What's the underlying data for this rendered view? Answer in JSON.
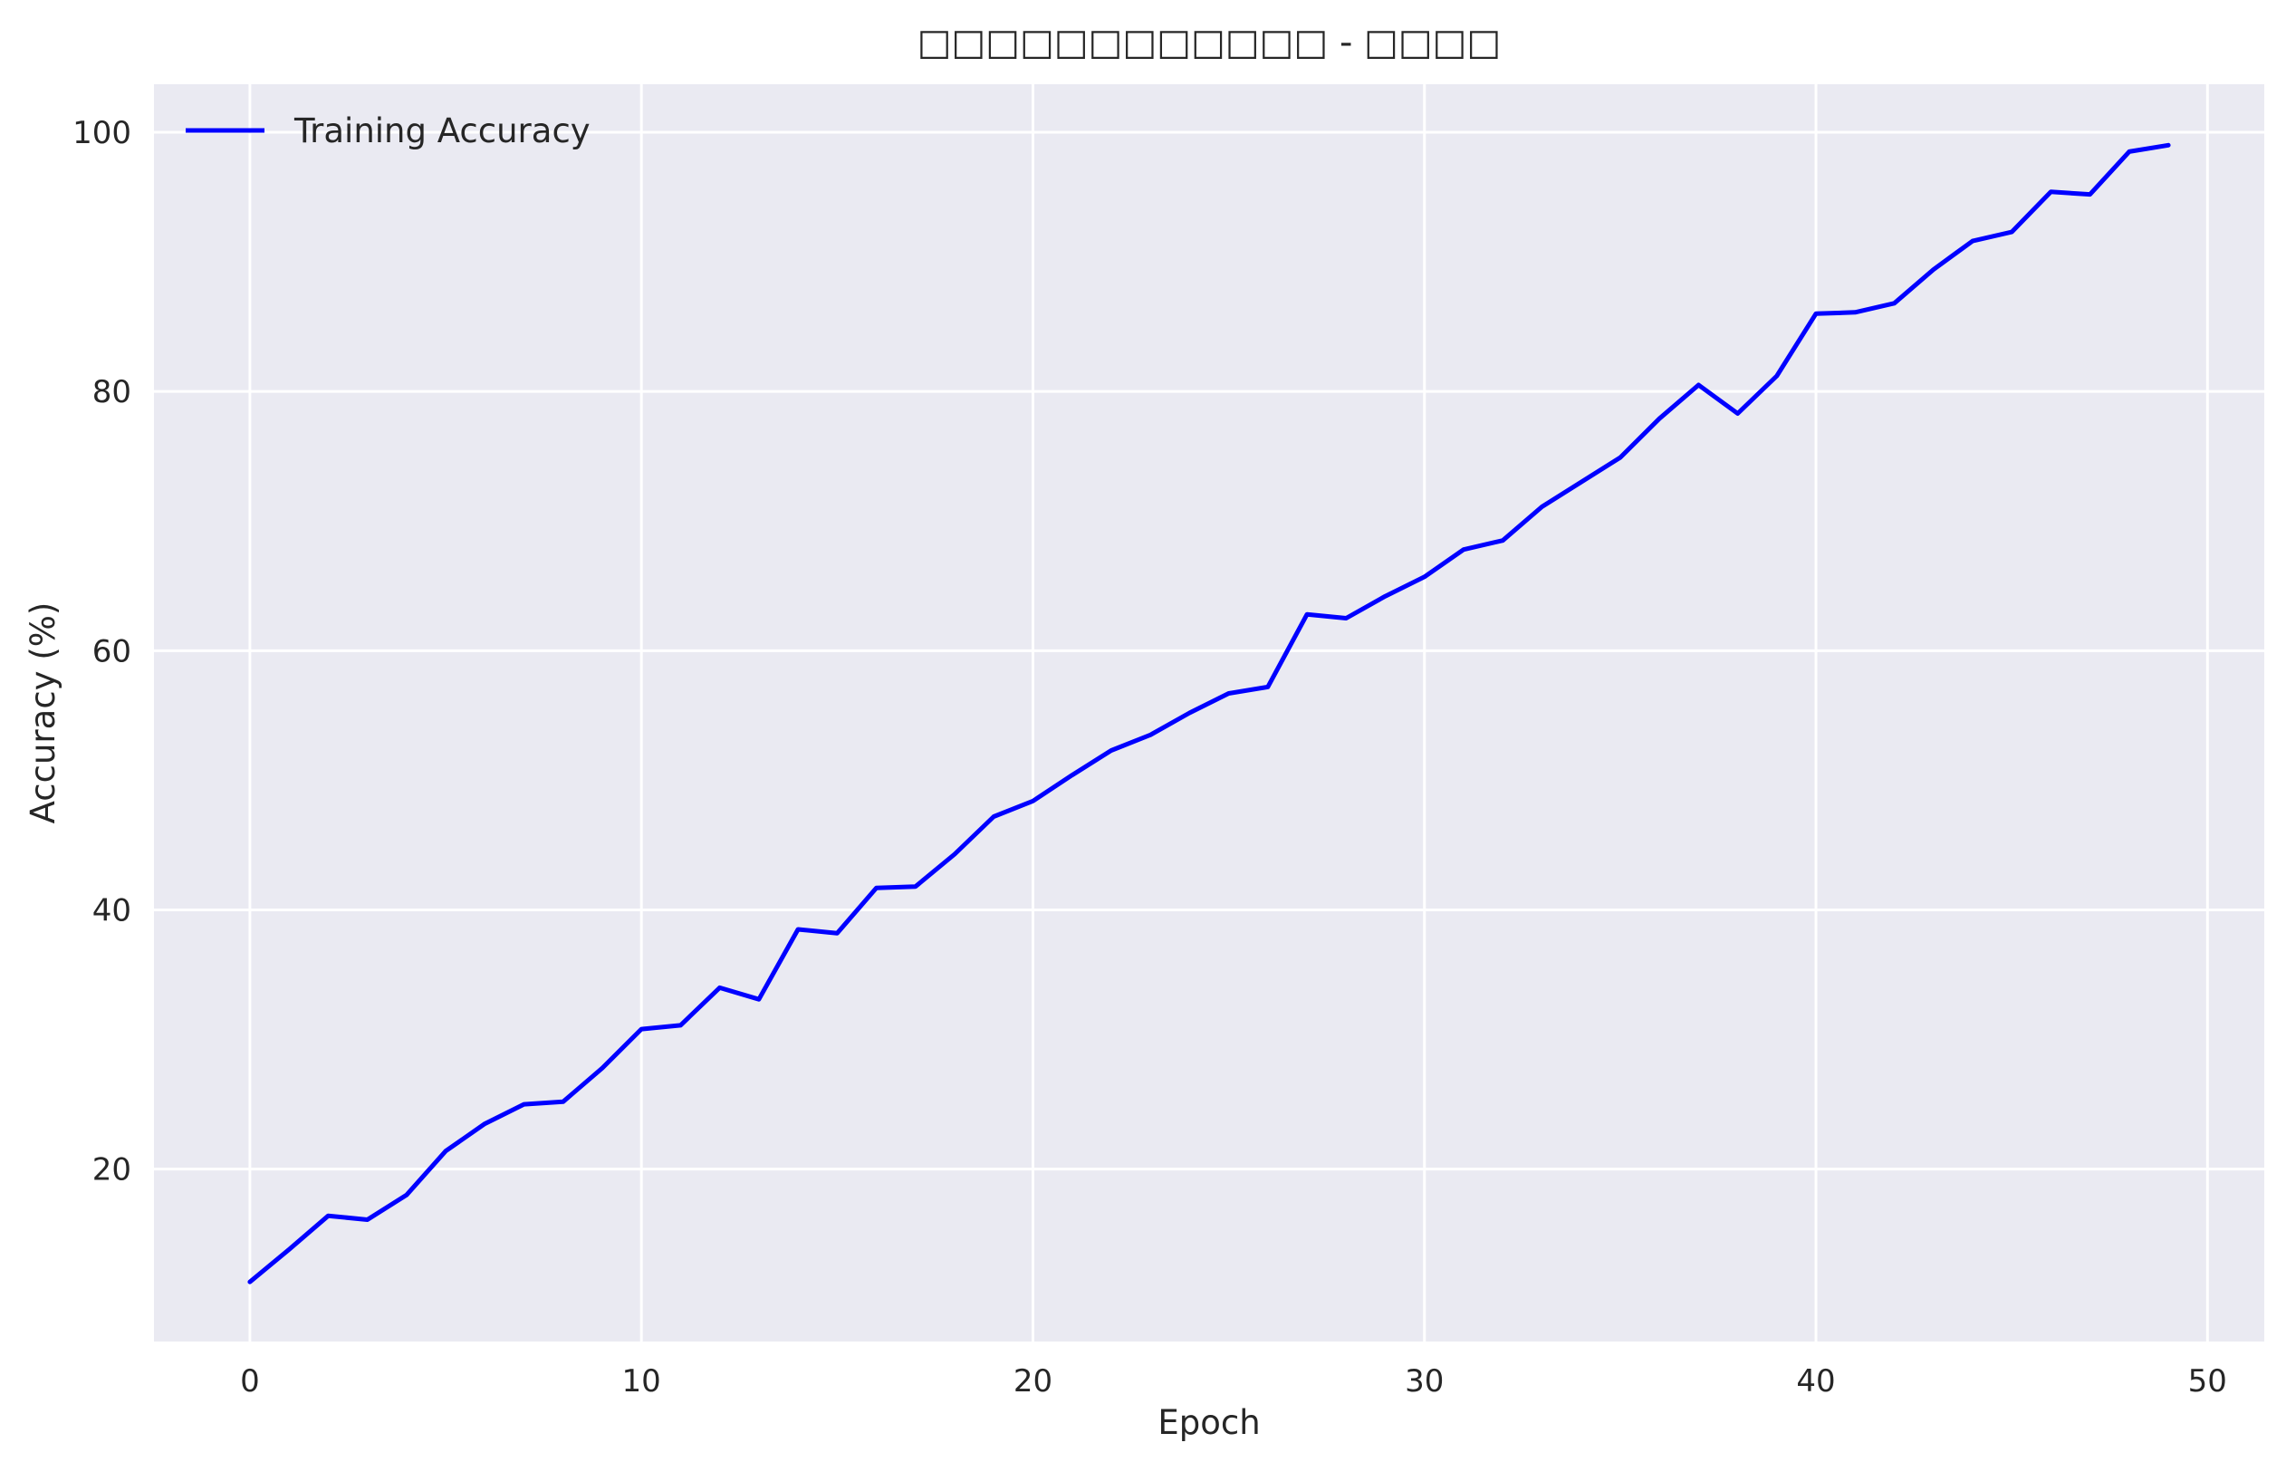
{
  "chart_data": {
    "type": "line",
    "title": "□□□□□□□□□□□□ - □□□□",
    "xlabel": "Epoch",
    "ylabel": "Accuracy (%)",
    "xlim": [
      -2.45,
      51.45
    ],
    "ylim": [
      6.7,
      103.7
    ],
    "xticks": [
      0,
      10,
      20,
      30,
      40,
      50
    ],
    "yticks": [
      20,
      40,
      60,
      80,
      100
    ],
    "grid": true,
    "legend_position": "top-left",
    "background_color": "#eaeaf2",
    "grid_color": "#ffffff",
    "series": [
      {
        "name": "Training Accuracy",
        "color": "#0000ff",
        "x": [
          0,
          1,
          2,
          3,
          4,
          5,
          6,
          7,
          8,
          9,
          10,
          11,
          12,
          13,
          14,
          15,
          16,
          17,
          18,
          19,
          20,
          21,
          22,
          23,
          24,
          25,
          26,
          27,
          28,
          29,
          30,
          31,
          32,
          33,
          34,
          35,
          36,
          37,
          38,
          39,
          40,
          41,
          42,
          43,
          44,
          45,
          46,
          47,
          48,
          49
        ],
        "values": [
          11.3,
          13.8,
          16.4,
          16.1,
          18.0,
          21.4,
          23.5,
          25.0,
          25.2,
          27.8,
          30.8,
          31.1,
          34.0,
          33.1,
          38.5,
          38.2,
          41.7,
          41.8,
          44.3,
          47.2,
          48.4,
          50.4,
          52.3,
          53.5,
          55.2,
          56.7,
          57.2,
          62.8,
          62.5,
          64.2,
          65.7,
          67.8,
          68.5,
          71.1,
          73.0,
          74.9,
          77.9,
          80.5,
          78.3,
          81.2,
          86.0,
          86.1,
          86.8,
          89.4,
          91.6,
          92.3,
          95.4,
          95.2,
          98.5,
          99.0
        ]
      }
    ]
  }
}
